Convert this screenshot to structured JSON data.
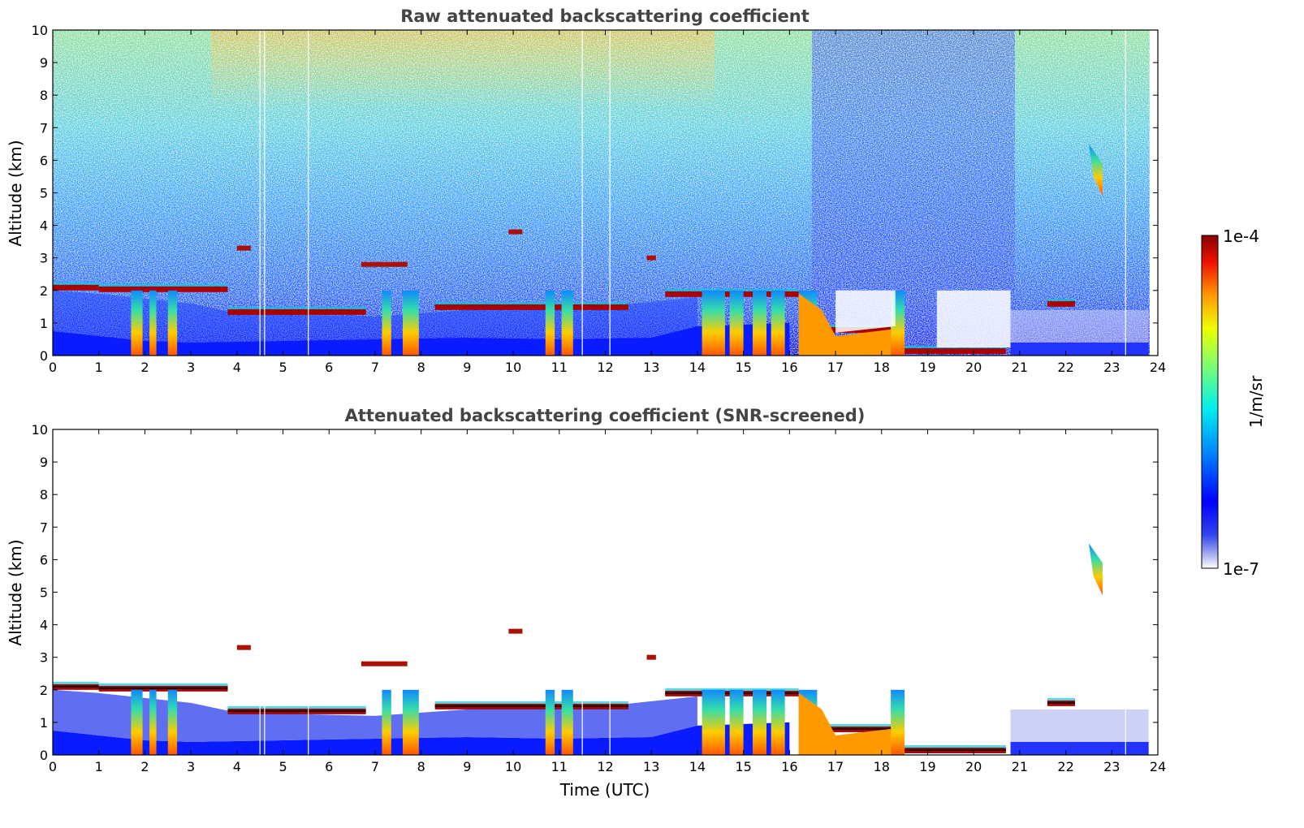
{
  "chart_data": [
    {
      "type": "heatmap",
      "title": "Raw attenuated backscattering coefficient",
      "xlabel": "",
      "ylabel": "Altitude (km)",
      "xlim": [
        0,
        24
      ],
      "ylim": [
        0,
        10
      ],
      "xticks": [
        "0",
        "1",
        "2",
        "3",
        "4",
        "5",
        "6",
        "7",
        "8",
        "9",
        "10",
        "11",
        "12",
        "13",
        "14",
        "15",
        "16",
        "17",
        "18",
        "19",
        "20",
        "21",
        "22",
        "23",
        "24"
      ],
      "yticks": [
        "0",
        "1",
        "2",
        "3",
        "4",
        "5",
        "6",
        "7",
        "8",
        "9",
        "10"
      ],
      "colorscale": "jet",
      "cloud_layers_km": [
        {
          "t_start": 0.0,
          "t_end": 1.0,
          "alt": 2.1
        },
        {
          "t_start": 1.0,
          "t_end": 3.8,
          "alt": 2.05
        },
        {
          "t_start": 3.8,
          "t_end": 6.8,
          "alt": 1.35
        },
        {
          "t_start": 8.3,
          "t_end": 12.5,
          "alt": 1.5
        },
        {
          "t_start": 13.3,
          "t_end": 16.2,
          "alt": 1.9
        },
        {
          "t_start": 16.2,
          "t_end": 18.3,
          "alt": 0.8
        },
        {
          "t_start": 18.5,
          "t_end": 20.7,
          "alt": 0.15
        },
        {
          "t_start": 21.6,
          "t_end": 22.2,
          "alt": 1.6
        },
        {
          "t_start": 22.5,
          "t_end": 22.8,
          "alt": 5.5
        }
      ]
    },
    {
      "type": "heatmap",
      "title": "Attenuated backscattering coefficient (SNR-screened)",
      "xlabel": "Time (UTC)",
      "ylabel": "Altitude (km)",
      "xlim": [
        0,
        24
      ],
      "ylim": [
        0,
        10
      ],
      "xticks": [
        "0",
        "1",
        "2",
        "3",
        "4",
        "5",
        "6",
        "7",
        "8",
        "9",
        "10",
        "11",
        "12",
        "13",
        "14",
        "15",
        "16",
        "17",
        "18",
        "19",
        "20",
        "21",
        "22",
        "23",
        "24"
      ],
      "yticks": [
        "0",
        "1",
        "2",
        "3",
        "4",
        "5",
        "6",
        "7",
        "8",
        "9",
        "10"
      ],
      "colorscale": "jet"
    }
  ],
  "colorbar": {
    "label": "1/m/sr",
    "max_label": "1e-4",
    "min_label": "1e-7",
    "scale": "log"
  }
}
